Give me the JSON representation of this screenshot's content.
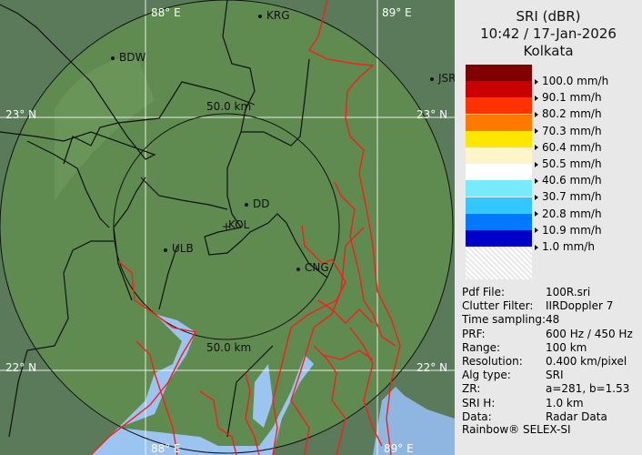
{
  "map": {
    "grid_labels": {
      "lon_88": "88° E",
      "lon_89": "89° E",
      "lat_23": "23° N",
      "lat_22": "22° N"
    },
    "range_rings": [
      "50.0 km",
      "50.0 km"
    ],
    "cities": [
      "KRG",
      "BDW",
      "JSR",
      "DD",
      "KOL",
      "ULB",
      "CNG"
    ]
  },
  "legend": {
    "product": "SRI (dBR)",
    "datetime": "10:42 / 17-Jan-2026",
    "site": "Kolkata",
    "colors": [
      "#800000",
      "#c80000",
      "#ff3200",
      "#ff7800",
      "#ffe600",
      "#fff5c8",
      "#ffffff",
      "#78ebff",
      "#32c8ff",
      "#0078ff",
      "#0000c8"
    ],
    "labels": [
      "100.0 mm/h",
      "90.1 mm/h",
      "80.2 mm/h",
      "70.3 mm/h",
      "60.4 mm/h",
      "50.5 mm/h",
      "40.6 mm/h",
      "30.7 mm/h",
      "20.8 mm/h",
      "10.9 mm/h",
      "1.0 mm/h"
    ]
  },
  "info": [
    {
      "k": "Pdf File:",
      "v": "100R.sri"
    },
    {
      "k": "Clutter Filter:",
      "v": "IIRDoppler 7"
    },
    {
      "k": "Time sampling:",
      "v": "48"
    },
    {
      "k": "PRF:",
      "v": "600 Hz / 450 Hz"
    },
    {
      "k": "Range:",
      "v": "100 km"
    },
    {
      "k": "Resolution:",
      "v": "0.400 km/pixel"
    },
    {
      "k": "Alg type:",
      "v": "SRI"
    },
    {
      "k": "ZR:",
      "v": "a=281, b=1.53"
    },
    {
      "k": "SRI H:",
      "v": "1.0 km"
    },
    {
      "k": "Data:",
      "v": "Radar Data"
    }
  ],
  "footer": "Rainbow® SELEX-SI"
}
